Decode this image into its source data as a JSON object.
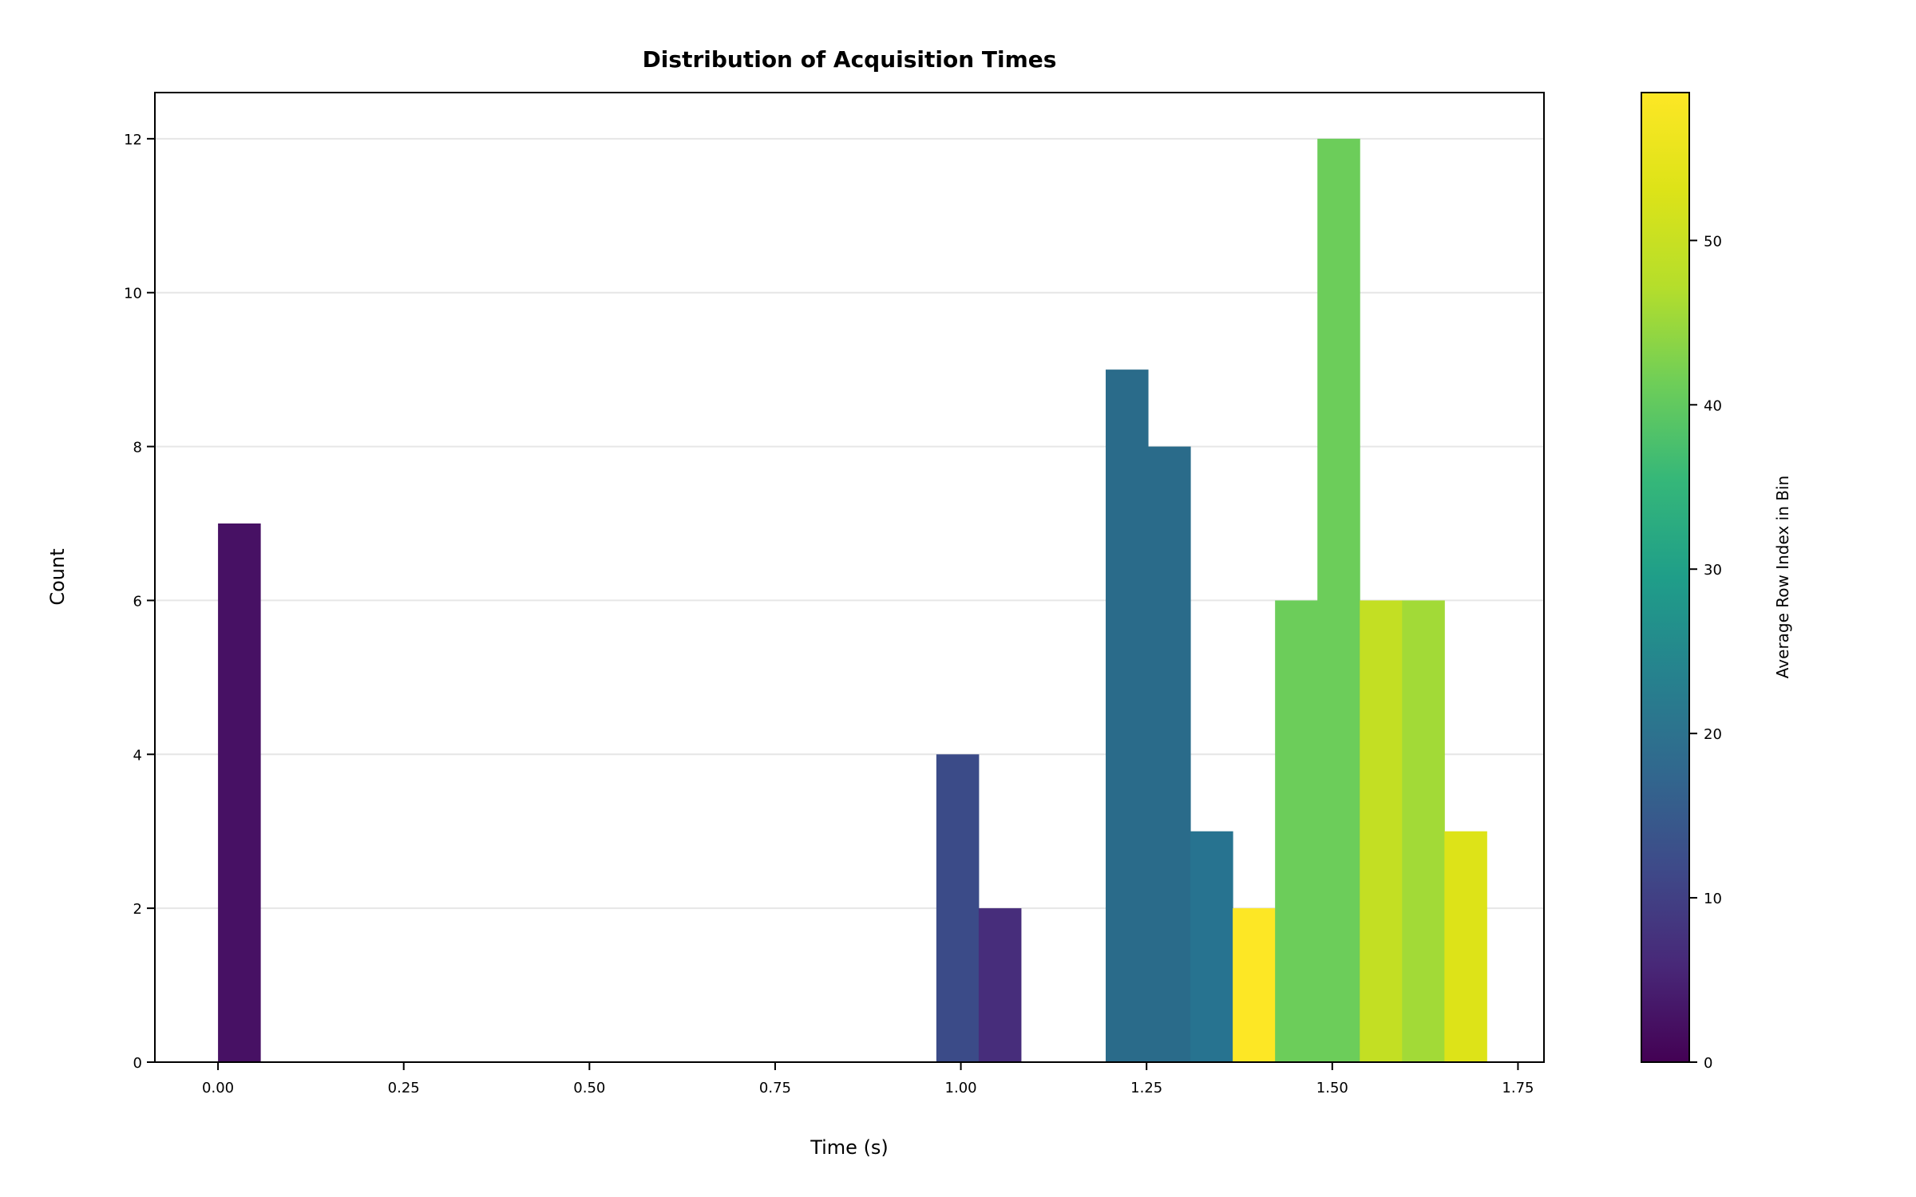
{
  "chart_data": {
    "type": "bar",
    "title": "Distribution of Acquisition Times",
    "xlabel": "Time (s)",
    "ylabel": "Count",
    "xlim": [
      -0.085,
      1.785
    ],
    "ylim": [
      0,
      12.6
    ],
    "xticks": [
      "0.00",
      "0.25",
      "0.50",
      "0.75",
      "1.00",
      "1.25",
      "1.50",
      "1.75"
    ],
    "yticks": [
      "0",
      "2",
      "4",
      "6",
      "8",
      "10",
      "12"
    ],
    "grid": "horizontal",
    "colorbar": {
      "label": "Average Row Index in Bin",
      "range": [
        0,
        59
      ],
      "ticks": [
        "0",
        "10",
        "20",
        "30",
        "40",
        "50"
      ],
      "colormap": "viridis"
    },
    "bins": [
      {
        "x0": 0.0,
        "x1": 0.057,
        "count": 7,
        "color": "#471164"
      },
      {
        "x0": 0.967,
        "x1": 1.024,
        "count": 4,
        "color": "#3b4b88"
      },
      {
        "x0": 1.024,
        "x1": 1.081,
        "count": 2,
        "color": "#472d7b"
      },
      {
        "x0": 1.195,
        "x1": 1.252,
        "count": 9,
        "color": "#2a6b8a"
      },
      {
        "x0": 1.252,
        "x1": 1.309,
        "count": 8,
        "color": "#2a6b8a"
      },
      {
        "x0": 1.309,
        "x1": 1.366,
        "count": 3,
        "color": "#277390"
      },
      {
        "x0": 1.366,
        "x1": 1.423,
        "count": 2,
        "color": "#fde725"
      },
      {
        "x0": 1.423,
        "x1": 1.48,
        "count": 6,
        "color": "#6ccd5a"
      },
      {
        "x0": 1.48,
        "x1": 1.537,
        "count": 12,
        "color": "#6ccd5a"
      },
      {
        "x0": 1.537,
        "x1": 1.594,
        "count": 6,
        "color": "#c3df23"
      },
      {
        "x0": 1.594,
        "x1": 1.651,
        "count": 6,
        "color": "#a2da37"
      },
      {
        "x0": 1.651,
        "x1": 1.708,
        "count": 3,
        "color": "#dde318"
      }
    ]
  }
}
